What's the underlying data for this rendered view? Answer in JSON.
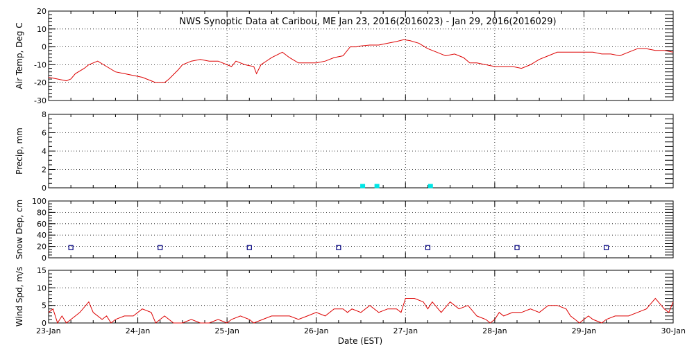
{
  "chart_data": {
    "type": "line",
    "title": "NWS Synoptic Data at Caribou, ME   Jan 23, 2016(2016023) - Jan 29, 2016(2016029)",
    "xlabel": "Date (EST)",
    "x_ticks": [
      "23-Jan",
      "24-Jan",
      "25-Jan",
      "26-Jan",
      "27-Jan",
      "28-Jan",
      "29-Jan",
      "30-Jan"
    ],
    "xlim_days": [
      0,
      7
    ],
    "colors": {
      "temp": "#dd0000",
      "precip": "#00e5e5",
      "snow": "#000080",
      "wind": "#dd0000"
    },
    "panels": [
      {
        "id": "temp",
        "type": "line",
        "ylabel": "Air Temp, Deg C",
        "ylim": [
          -30,
          20
        ],
        "yticks": [
          -30,
          -20,
          -10,
          0,
          10,
          20
        ],
        "minor_step": 2,
        "points": [
          [
            0,
            -17
          ],
          [
            0.1,
            -18
          ],
          [
            0.2,
            -19
          ],
          [
            0.25,
            -18
          ],
          [
            0.3,
            -15
          ],
          [
            0.4,
            -12
          ],
          [
            0.45,
            -10
          ],
          [
            0.55,
            -8
          ],
          [
            0.65,
            -11
          ],
          [
            0.75,
            -14
          ],
          [
            0.85,
            -15
          ],
          [
            0.95,
            -16
          ],
          [
            1.05,
            -17
          ],
          [
            1.15,
            -19
          ],
          [
            1.2,
            -20
          ],
          [
            1.3,
            -20
          ],
          [
            1.35,
            -18
          ],
          [
            1.45,
            -13
          ],
          [
            1.5,
            -10
          ],
          [
            1.6,
            -8
          ],
          [
            1.7,
            -7
          ],
          [
            1.8,
            -8
          ],
          [
            1.9,
            -8
          ],
          [
            2.0,
            -10
          ],
          [
            2.05,
            -11
          ],
          [
            2.1,
            -8
          ],
          [
            2.2,
            -10
          ],
          [
            2.3,
            -11
          ],
          [
            2.33,
            -15
          ],
          [
            2.38,
            -10
          ],
          [
            2.5,
            -6
          ],
          [
            2.62,
            -3
          ],
          [
            2.7,
            -6
          ],
          [
            2.8,
            -9
          ],
          [
            2.9,
            -9
          ],
          [
            3.0,
            -9
          ],
          [
            3.1,
            -8
          ],
          [
            3.2,
            -6
          ],
          [
            3.3,
            -5
          ],
          [
            3.38,
            0
          ],
          [
            3.45,
            0
          ],
          [
            3.5,
            0.5
          ],
          [
            3.6,
            1
          ],
          [
            3.7,
            1
          ],
          [
            3.8,
            2
          ],
          [
            3.9,
            3
          ],
          [
            3.98,
            4
          ],
          [
            4.05,
            3.5
          ],
          [
            4.15,
            2
          ],
          [
            4.25,
            -1
          ],
          [
            4.35,
            -3
          ],
          [
            4.45,
            -5
          ],
          [
            4.55,
            -4
          ],
          [
            4.65,
            -6
          ],
          [
            4.72,
            -9
          ],
          [
            4.8,
            -9
          ],
          [
            4.9,
            -10
          ],
          [
            5.0,
            -11
          ],
          [
            5.1,
            -11
          ],
          [
            5.2,
            -11
          ],
          [
            5.3,
            -12
          ],
          [
            5.4,
            -10
          ],
          [
            5.5,
            -7
          ],
          [
            5.6,
            -5
          ],
          [
            5.7,
            -3
          ],
          [
            5.8,
            -3
          ],
          [
            5.9,
            -3
          ],
          [
            6.0,
            -3
          ],
          [
            6.1,
            -3
          ],
          [
            6.2,
            -4
          ],
          [
            6.3,
            -4
          ],
          [
            6.4,
            -5
          ],
          [
            6.5,
            -3
          ],
          [
            6.6,
            -1
          ],
          [
            6.7,
            -1
          ],
          [
            6.8,
            -2
          ],
          [
            6.9,
            -2
          ],
          [
            7.0,
            -3
          ]
        ]
      },
      {
        "id": "precip",
        "type": "markers",
        "ylabel": "Precip, mm",
        "ylim": [
          0,
          8
        ],
        "yticks": [
          0,
          2,
          4,
          6,
          8
        ],
        "minor_step": 0.5,
        "points": [
          [
            3.52,
            0.05
          ],
          [
            3.68,
            0.05
          ],
          [
            4.28,
            0.05
          ]
        ]
      },
      {
        "id": "snow",
        "type": "markers",
        "ylabel": "Snow Dep, cm",
        "ylim": [
          0,
          100
        ],
        "yticks": [
          0,
          20,
          40,
          60,
          80,
          100
        ],
        "minor_step": 5,
        "points": [
          [
            0.25,
            18
          ],
          [
            1.25,
            18
          ],
          [
            2.25,
            18
          ],
          [
            3.25,
            18
          ],
          [
            4.25,
            18
          ],
          [
            5.25,
            18
          ],
          [
            6.25,
            18
          ]
        ]
      },
      {
        "id": "wind",
        "type": "line",
        "ylabel": "Wind Spd, m/s",
        "ylim": [
          0,
          15
        ],
        "yticks": [
          0,
          5,
          10,
          15
        ],
        "minor_step": 1,
        "points": [
          [
            0,
            3
          ],
          [
            0.05,
            4
          ],
          [
            0.1,
            0
          ],
          [
            0.15,
            2
          ],
          [
            0.2,
            0
          ],
          [
            0.3,
            2
          ],
          [
            0.35,
            3
          ],
          [
            0.45,
            6
          ],
          [
            0.5,
            3
          ],
          [
            0.6,
            1
          ],
          [
            0.65,
            2
          ],
          [
            0.7,
            0
          ],
          [
            0.75,
            1
          ],
          [
            0.85,
            2
          ],
          [
            0.95,
            2
          ],
          [
            1.05,
            4
          ],
          [
            1.15,
            3
          ],
          [
            1.2,
            0
          ],
          [
            1.3,
            2
          ],
          [
            1.4,
            0
          ],
          [
            1.5,
            0
          ],
          [
            1.6,
            1
          ],
          [
            1.7,
            0
          ],
          [
            1.8,
            0
          ],
          [
            1.9,
            1
          ],
          [
            2.0,
            0
          ],
          [
            2.05,
            1
          ],
          [
            2.15,
            2
          ],
          [
            2.25,
            1
          ],
          [
            2.3,
            0
          ],
          [
            2.4,
            1
          ],
          [
            2.5,
            2
          ],
          [
            2.6,
            2
          ],
          [
            2.7,
            2
          ],
          [
            2.8,
            1
          ],
          [
            2.9,
            2
          ],
          [
            3.0,
            3
          ],
          [
            3.1,
            2
          ],
          [
            3.2,
            4
          ],
          [
            3.3,
            4
          ],
          [
            3.35,
            3
          ],
          [
            3.4,
            4
          ],
          [
            3.5,
            3
          ],
          [
            3.6,
            5
          ],
          [
            3.7,
            3
          ],
          [
            3.8,
            4
          ],
          [
            3.9,
            4
          ],
          [
            3.95,
            3
          ],
          [
            4.0,
            7
          ],
          [
            4.1,
            7
          ],
          [
            4.2,
            6
          ],
          [
            4.25,
            4
          ],
          [
            4.3,
            6
          ],
          [
            4.4,
            3
          ],
          [
            4.5,
            6
          ],
          [
            4.6,
            4
          ],
          [
            4.7,
            5
          ],
          [
            4.8,
            2
          ],
          [
            4.9,
            1
          ],
          [
            4.95,
            0
          ],
          [
            5.0,
            1
          ],
          [
            5.05,
            3
          ],
          [
            5.1,
            2
          ],
          [
            5.2,
            3
          ],
          [
            5.3,
            3
          ],
          [
            5.4,
            4
          ],
          [
            5.5,
            3
          ],
          [
            5.6,
            5
          ],
          [
            5.7,
            5
          ],
          [
            5.8,
            4
          ],
          [
            5.85,
            2
          ],
          [
            5.9,
            1
          ],
          [
            5.95,
            0
          ],
          [
            6.0,
            1
          ],
          [
            6.05,
            2
          ],
          [
            6.1,
            1
          ],
          [
            6.2,
            0
          ],
          [
            6.25,
            1
          ],
          [
            6.35,
            2
          ],
          [
            6.5,
            2
          ],
          [
            6.6,
            3
          ],
          [
            6.7,
            4
          ],
          [
            6.8,
            7
          ],
          [
            6.9,
            4
          ],
          [
            6.95,
            3
          ],
          [
            7.0,
            6
          ]
        ]
      }
    ]
  }
}
